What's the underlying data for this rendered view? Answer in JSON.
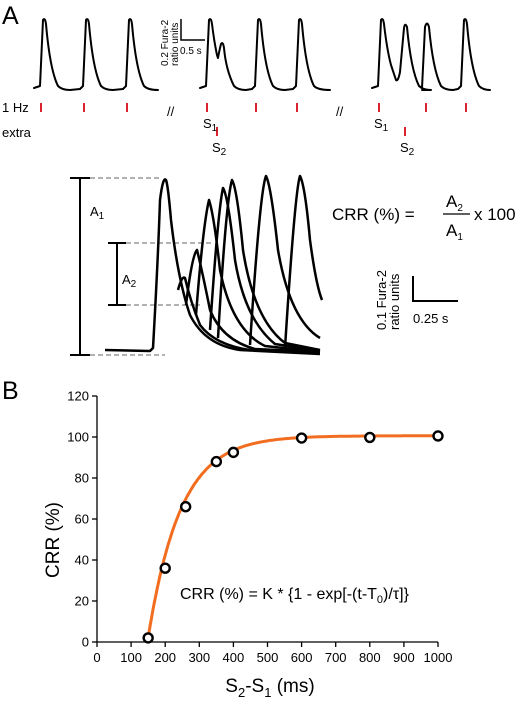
{
  "panel_a": {
    "label": "A",
    "protocol_labels": {
      "pacing": "1 Hz",
      "extra": "extra"
    },
    "break_symbol": "//",
    "stimulus_labels": {
      "s1_main": "S",
      "s1_sub": "1",
      "s2_main": "S",
      "s2_sub": "2"
    },
    "scale_bar_top": {
      "y_line1": "0.2 Fura-2",
      "y_line2": "ratio units",
      "x_label": "0.5 s"
    },
    "amplitude_labels": {
      "a1_main": "A",
      "a1_sub": "1",
      "a2_main": "A",
      "a2_sub": "2"
    },
    "equation": {
      "lhs": "CRR (%) =",
      "num_main": "A",
      "num_sub": "2",
      "den_main": "A",
      "den_sub": "1",
      "rhs": "x 100"
    },
    "scale_bar_bottom": {
      "y_line1": "0.1 Fura-2",
      "y_line2": "ratio units",
      "x_label": "0.25 s"
    },
    "colors": {
      "stimulus": "#d9232e",
      "trace": "#000000",
      "guide": "#999999"
    }
  },
  "panel_b": {
    "label": "B",
    "equation": {
      "part1": "CRR (%) = K * {1 - exp[-(t-T",
      "sub0": "0",
      "part2": ")/",
      "tau": "τ",
      "part3": "]}"
    },
    "ylabel": "CRR (%)",
    "xlabel": {
      "main1": "S",
      "sub1": "2",
      "mid": "-S",
      "sub2": "1",
      "unit": " (ms)"
    }
  },
  "chart_data": {
    "type": "scatter",
    "title": "",
    "xlabel": "S2-S1 (ms)",
    "ylabel": "CRR (%)",
    "xlim": [
      0,
      1000
    ],
    "ylim": [
      0,
      120
    ],
    "xticks": [
      0,
      100,
      200,
      300,
      400,
      500,
      600,
      700,
      800,
      900,
      1000
    ],
    "yticks": [
      0,
      20,
      40,
      60,
      80,
      100,
      120
    ],
    "grid": false,
    "series": [
      {
        "marker": "open-circle",
        "x": [
          150,
          200,
          260,
          350,
          400,
          600,
          800,
          1000
        ],
        "y": [
          2,
          36,
          66,
          88,
          92.5,
          99.5,
          99.8,
          100.5
        ]
      }
    ],
    "fit": {
      "model": "K*(1-exp(-(t-T0)/tau))",
      "K": 100.6,
      "T0": 148,
      "tau": 95,
      "x_end": 1000,
      "color": "#f26d1f"
    }
  }
}
